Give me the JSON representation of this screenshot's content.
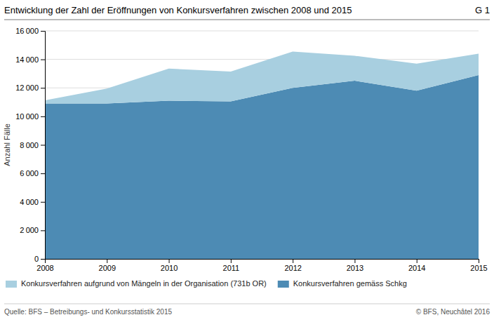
{
  "chart_data": {
    "type": "area",
    "stacked": true,
    "title": "Entwicklung der Zahl der Eröffnungen von Konkursverfahren zwischen 2008 und 2015",
    "y_label": "Anzahl Fälle",
    "annotations": [
      "G 1",
      "Quelle: BFS – Betreibungs- und Konkursstatistik 2015",
      "© BFS, Neuchâtel 2016"
    ],
    "x": [
      2008,
      2009,
      2010,
      2011,
      2012,
      2013,
      2014,
      2015
    ],
    "xlim": [
      2008,
      2015
    ],
    "xticks": [
      2008,
      2009,
      2010,
      2011,
      2012,
      2013,
      2014,
      2015
    ],
    "ylim": [
      0,
      16000
    ],
    "yticks": [
      0,
      {
        "value": 2000,
        "label": "2 000"
      },
      {
        "value": 4000,
        "label": "4 000"
      },
      {
        "value": 6000,
        "label": "6 000"
      },
      {
        "value": 8000,
        "label": "8 000"
      },
      {
        "value": 10000,
        "label": "10 000"
      },
      {
        "value": 12000,
        "label": "12 000"
      },
      {
        "value": 14000,
        "label": "14 000"
      },
      {
        "value": 16000,
        "label": "16 000"
      }
    ],
    "grid": true,
    "legend": "bottom",
    "series": [
      {
        "name": "Konkursverfahren gemäss Schkg",
        "color": "#4d8bb4",
        "values": [
          10900,
          10900,
          11100,
          11050,
          12000,
          12500,
          11800,
          12900
        ]
      },
      {
        "name": "Konkursverfahren aufgrund von Mängeln in der Organisation (731b OR)",
        "color": "#a8cfe0",
        "values": [
          230,
          1050,
          2250,
          2100,
          2550,
          1750,
          1900,
          1500
        ]
      }
    ]
  }
}
